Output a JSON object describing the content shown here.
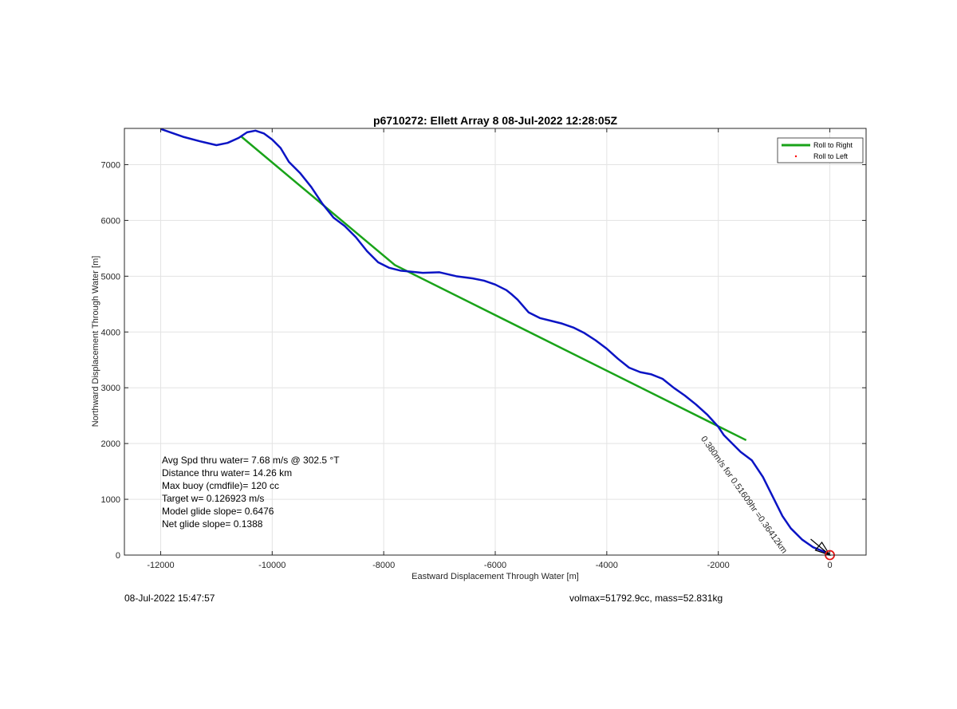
{
  "chart_data": {
    "type": "line",
    "title": "p6710272: Ellett Array 8 08-Jul-2022 12:28:05Z",
    "xlabel": "Eastward Displacement Through Water [m]",
    "ylabel": "Northward Displacement Through Water [m]",
    "xlim": [
      -12650,
      650
    ],
    "ylim": [
      0,
      7650
    ],
    "xticks": [
      -12000,
      -10000,
      -8000,
      -6000,
      -4000,
      -2000,
      0
    ],
    "yticks": [
      0,
      1000,
      2000,
      3000,
      4000,
      5000,
      6000,
      7000
    ],
    "grid": true,
    "legend_position": "top-right",
    "series": [
      {
        "name": "",
        "color": "#0b14c4",
        "x": [
          -12000,
          -11600,
          -11300,
          -11000,
          -10800,
          -10600,
          -10450,
          -10300,
          -10150,
          -10000,
          -9850,
          -9700,
          -9500,
          -9300,
          -9100,
          -8900,
          -8700,
          -8500,
          -8300,
          -8100,
          -7900,
          -7700,
          -7500,
          -7300,
          -7000,
          -6700,
          -6400,
          -6200,
          -6000,
          -5800,
          -5700,
          -5600,
          -5400,
          -5200,
          -5000,
          -4800,
          -4600,
          -4400,
          -4200,
          -4000,
          -3800,
          -3600,
          -3400,
          -3200,
          -3000,
          -2800,
          -2600,
          -2400,
          -2200,
          -2000,
          -1900,
          -1800,
          -1700,
          -1600,
          -1400,
          -1200,
          -1000,
          -850,
          -700,
          -500,
          -300,
          -100,
          0
        ],
        "y": [
          7640,
          7500,
          7420,
          7350,
          7390,
          7480,
          7580,
          7610,
          7560,
          7450,
          7300,
          7050,
          6850,
          6600,
          6300,
          6050,
          5900,
          5700,
          5450,
          5250,
          5150,
          5100,
          5080,
          5060,
          5070,
          5000,
          4960,
          4920,
          4850,
          4750,
          4670,
          4580,
          4350,
          4250,
          4200,
          4150,
          4080,
          3980,
          3850,
          3700,
          3520,
          3360,
          3280,
          3240,
          3160,
          3000,
          2860,
          2700,
          2520,
          2300,
          2150,
          2050,
          1950,
          1850,
          1700,
          1400,
          1000,
          700,
          480,
          280,
          140,
          60,
          0
        ]
      },
      {
        "name": "Roll to Right",
        "color": "#19a319",
        "x": [
          -10550,
          -7800,
          -1500
        ],
        "y": [
          7500,
          5200,
          2060
        ]
      },
      {
        "name": "Roll to Left",
        "color": "#ff0000",
        "x": [],
        "y": []
      }
    ],
    "annotations": {
      "arrow_label": "0.380m/s for 0.51609hr =0.36412km",
      "end_marker": {
        "x": 0,
        "y": 0,
        "color": "#e31414"
      }
    }
  },
  "stats": {
    "avg_speed": "Avg Spd thru water=  7.68 m/s @ 302.5 °T",
    "distance": "Distance thru water= 14.26 km",
    "max_buoy": "Max buoy (cmdfile)= 120 cc",
    "target_w": "Target w= 0.126923 m/s",
    "model_glide": "Model glide slope= 0.6476",
    "net_glide": "Net glide slope= 0.1388"
  },
  "footer": {
    "timestamp": "08-Jul-2022 15:47:57",
    "mass_info": "volmax=51792.9cc, mass=52.831kg"
  }
}
